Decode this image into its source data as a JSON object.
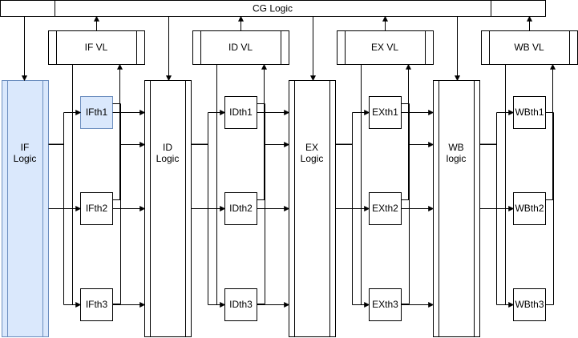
{
  "cg_logic": "CG Logic",
  "stages": [
    {
      "key": "if",
      "logic_lines": [
        "IF",
        "Logic"
      ],
      "vl_label": "IF VL",
      "threads": [
        "IFth1",
        "IFth2",
        "IFth3"
      ],
      "logic_fill": "#dae8fc",
      "logic_stroke": "#6c8ebf"
    },
    {
      "key": "id",
      "logic_lines": [
        "ID",
        "Logic"
      ],
      "vl_label": "ID VL",
      "threads": [
        "IDth1",
        "IDth2",
        "IDth3"
      ],
      "logic_fill": "#ffffff",
      "logic_stroke": "#000000"
    },
    {
      "key": "ex",
      "logic_lines": [
        "EX",
        "Logic"
      ],
      "vl_label": "EX VL",
      "threads": [
        "EXth1",
        "EXth2",
        "EXth3"
      ],
      "logic_fill": "#ffffff",
      "logic_stroke": "#000000"
    },
    {
      "key": "wb",
      "logic_lines": [
        "WB",
        "logic"
      ],
      "vl_label": "WB VL",
      "threads": [
        "WBth1",
        "WBth2",
        "WBth3"
      ],
      "logic_fill": "#ffffff",
      "logic_stroke": "#000000"
    }
  ],
  "highlight": {
    "thread": "IFth1",
    "fill": "#dae8fc",
    "stroke": "#6c8ebf"
  }
}
